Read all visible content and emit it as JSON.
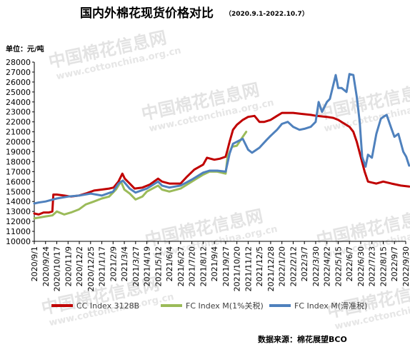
{
  "chart_data": {
    "type": "line",
    "title": "国内外棉花现货价格对比",
    "subtitle": "（2020.9.1-2022.10.7）",
    "unit_label": "单位：元/吨",
    "source_label": "数据来源：棉花展望BCO",
    "watermark": {
      "cn": "中国棉花信息网",
      "en": "www.cottonchina.org.cn"
    },
    "ylim": [
      10000,
      28000
    ],
    "y_ticks": [
      10000,
      11000,
      12000,
      13000,
      14000,
      15000,
      16000,
      17000,
      18000,
      19000,
      20000,
      21000,
      22000,
      23000,
      24000,
      25000,
      26000,
      27000,
      28000
    ],
    "x_ticks": [
      "2020/9/1",
      "2020/9/24",
      "2020/10/17",
      "2020/11/9",
      "2020/12/2",
      "2020/12/25",
      "2021/1/17",
      "2021/2/9",
      "2021/3/4",
      "2021/3/27",
      "2021/4/19",
      "2021/5/12",
      "2021/6/4",
      "2021/6/27",
      "2021/7/20",
      "2021/8/12",
      "2021/9/4",
      "2021/9/27",
      "2021/10/20",
      "2021/11/12",
      "2021/12/5",
      "2021/12/28",
      "2022/1/20",
      "2022/2/12",
      "2022/3/7",
      "2022/3/30",
      "2022/4/22",
      "2022/5/15",
      "2022/6/7",
      "2022/6/30",
      "2022/7/23",
      "2022/8/15",
      "2022/9/7",
      "2022/9/30"
    ],
    "series": [
      {
        "name": "CC Index 3128B",
        "color": "#C00000",
        "points": [
          [
            "2020/9/1",
            12800
          ],
          [
            "2020/9/10",
            12700
          ],
          [
            "2020/9/20",
            12900
          ],
          [
            "2020/10/1",
            12900
          ],
          [
            "2020/10/8",
            13000
          ],
          [
            "2020/10/10",
            14700
          ],
          [
            "2020/10/17",
            14700
          ],
          [
            "2020/11/1",
            14600
          ],
          [
            "2020/11/15",
            14500
          ],
          [
            "2020/12/1",
            14600
          ],
          [
            "2020/12/15",
            14800
          ],
          [
            "2021/1/1",
            15100
          ],
          [
            "2021/1/17",
            15200
          ],
          [
            "2021/2/1",
            15300
          ],
          [
            "2021/2/10",
            15400
          ],
          [
            "2021/2/20",
            16000
          ],
          [
            "2021/2/28",
            16800
          ],
          [
            "2021/3/5",
            16300
          ],
          [
            "2021/3/15",
            15800
          ],
          [
            "2021/3/25",
            15300
          ],
          [
            "2021/4/10",
            15400
          ],
          [
            "2021/4/25",
            15700
          ],
          [
            "2021/5/12",
            16300
          ],
          [
            "2021/5/20",
            16000
          ],
          [
            "2021/6/4",
            15800
          ],
          [
            "2021/6/27",
            15800
          ],
          [
            "2021/7/10",
            16500
          ],
          [
            "2021/7/25",
            17200
          ],
          [
            "2021/8/12",
            17700
          ],
          [
            "2021/8/20",
            18400
          ],
          [
            "2021/9/4",
            18200
          ],
          [
            "2021/9/15",
            18300
          ],
          [
            "2021/9/27",
            18500
          ],
          [
            "2021/10/1",
            19200
          ],
          [
            "2021/10/5",
            20000
          ],
          [
            "2021/10/12",
            21200
          ],
          [
            "2021/10/20",
            21700
          ],
          [
            "2021/11/1",
            22200
          ],
          [
            "2021/11/12",
            22500
          ],
          [
            "2021/11/25",
            22600
          ],
          [
            "2021/12/5",
            22000
          ],
          [
            "2021/12/15",
            22000
          ],
          [
            "2021/12/28",
            22200
          ],
          [
            "2022/1/10",
            22600
          ],
          [
            "2022/1/20",
            22900
          ],
          [
            "2022/2/1",
            22900
          ],
          [
            "2022/2/12",
            22900
          ],
          [
            "2022/3/1",
            22800
          ],
          [
            "2022/3/20",
            22700
          ],
          [
            "2022/4/1",
            22600
          ],
          [
            "2022/4/22",
            22500
          ],
          [
            "2022/5/5",
            22400
          ],
          [
            "2022/5/15",
            22200
          ],
          [
            "2022/5/25",
            21900
          ],
          [
            "2022/6/7",
            21500
          ],
          [
            "2022/6/15",
            21000
          ],
          [
            "2022/6/22",
            20000
          ],
          [
            "2022/6/30",
            18500
          ],
          [
            "2022/7/8",
            17000
          ],
          [
            "2022/7/15",
            16000
          ],
          [
            "2022/7/23",
            15900
          ],
          [
            "2022/8/1",
            15800
          ],
          [
            "2022/8/15",
            16000
          ],
          [
            "2022/9/1",
            15800
          ],
          [
            "2022/9/20",
            15600
          ],
          [
            "2022/10/7",
            15500
          ]
        ]
      },
      {
        "name": "FC Index M(1%关税)",
        "color": "#9BBB59",
        "points": [
          [
            "2020/9/1",
            12300
          ],
          [
            "2020/9/24",
            12500
          ],
          [
            "2020/10/8",
            12600
          ],
          [
            "2020/10/17",
            13000
          ],
          [
            "2020/11/1",
            12700
          ],
          [
            "2020/11/15",
            12900
          ],
          [
            "2020/12/1",
            13200
          ],
          [
            "2020/12/15",
            13700
          ],
          [
            "2021/1/1",
            14000
          ],
          [
            "2021/1/17",
            14300
          ],
          [
            "2021/2/1",
            14500
          ],
          [
            "2021/2/15",
            15200
          ],
          [
            "2021/2/25",
            16000
          ],
          [
            "2021/3/4",
            15200
          ],
          [
            "2021/3/15",
            14800
          ],
          [
            "2021/3/27",
            14200
          ],
          [
            "2021/4/10",
            14500
          ],
          [
            "2021/4/19",
            15000
          ],
          [
            "2021/5/12",
            15600
          ],
          [
            "2021/5/20",
            15200
          ],
          [
            "2021/6/4",
            15000
          ],
          [
            "2021/6/27",
            15300
          ],
          [
            "2021/7/20",
            16000
          ],
          [
            "2021/8/12",
            16700
          ],
          [
            "2021/8/25",
            17000
          ],
          [
            "2021/9/10",
            17000
          ],
          [
            "2021/9/27",
            16800
          ],
          [
            "2021/10/1",
            18500
          ],
          [
            "2021/10/10",
            19500
          ],
          [
            "2021/10/20",
            19600
          ],
          [
            "2021/11/1",
            20500
          ],
          [
            "2021/11/8",
            21000
          ]
        ]
      },
      {
        "name": "FC Index M(滑准税)",
        "color": "#4F81BD",
        "points": [
          [
            "2020/9/1",
            13800
          ],
          [
            "2020/9/10",
            13900
          ],
          [
            "2020/9/24",
            14000
          ],
          [
            "2020/10/17",
            14300
          ],
          [
            "2020/11/9",
            14500
          ],
          [
            "2020/12/2",
            14600
          ],
          [
            "2020/12/25",
            14800
          ],
          [
            "2021/1/17",
            14600
          ],
          [
            "2021/2/9",
            15000
          ],
          [
            "2021/2/20",
            15800
          ],
          [
            "2021/3/1",
            16100
          ],
          [
            "2021/3/15",
            15300
          ],
          [
            "2021/3/27",
            14900
          ],
          [
            "2021/4/19",
            15300
          ],
          [
            "2021/5/12",
            16000
          ],
          [
            "2021/5/20",
            15600
          ],
          [
            "2021/6/4",
            15400
          ],
          [
            "2021/6/27",
            15600
          ],
          [
            "2021/7/20",
            16200
          ],
          [
            "2021/8/12",
            16900
          ],
          [
            "2021/8/25",
            17100
          ],
          [
            "2021/9/10",
            17100
          ],
          [
            "2021/9/27",
            17000
          ],
          [
            "2021/10/5",
            18800
          ],
          [
            "2021/10/12",
            19800
          ],
          [
            "2021/10/20",
            20000
          ],
          [
            "2021/11/1",
            20300
          ],
          [
            "2021/11/12",
            19200
          ],
          [
            "2021/11/20",
            18900
          ],
          [
            "2021/12/5",
            19400
          ],
          [
            "2021/12/20",
            20200
          ],
          [
            "2021/12/28",
            20600
          ],
          [
            "2022/1/10",
            21200
          ],
          [
            "2022/1/20",
            21800
          ],
          [
            "2022/2/1",
            22000
          ],
          [
            "2022/2/12",
            21500
          ],
          [
            "2022/2/25",
            21200
          ],
          [
            "2022/3/7",
            21300
          ],
          [
            "2022/3/20",
            21500
          ],
          [
            "2022/3/30",
            22000
          ],
          [
            "2022/4/5",
            24000
          ],
          [
            "2022/4/12",
            23000
          ],
          [
            "2022/4/22",
            24000
          ],
          [
            "2022/4/28",
            24300
          ],
          [
            "2022/5/5",
            25700
          ],
          [
            "2022/5/10",
            26700
          ],
          [
            "2022/5/15",
            25400
          ],
          [
            "2022/5/22",
            25400
          ],
          [
            "2022/6/1",
            25000
          ],
          [
            "2022/6/7",
            26800
          ],
          [
            "2022/6/15",
            26700
          ],
          [
            "2022/6/22",
            24500
          ],
          [
            "2022/6/28",
            22000
          ],
          [
            "2022/7/3",
            18500
          ],
          [
            "2022/7/10",
            17500
          ],
          [
            "2022/7/15",
            18700
          ],
          [
            "2022/7/23",
            18400
          ],
          [
            "2022/8/1",
            20800
          ],
          [
            "2022/8/10",
            22300
          ],
          [
            "2022/8/15",
            22500
          ],
          [
            "2022/8/22",
            22700
          ],
          [
            "2022/9/1",
            21300
          ],
          [
            "2022/9/7",
            20500
          ],
          [
            "2022/9/15",
            20800
          ],
          [
            "2022/9/25",
            19000
          ],
          [
            "2022/10/1",
            18500
          ],
          [
            "2022/10/7",
            17600
          ]
        ]
      }
    ]
  }
}
